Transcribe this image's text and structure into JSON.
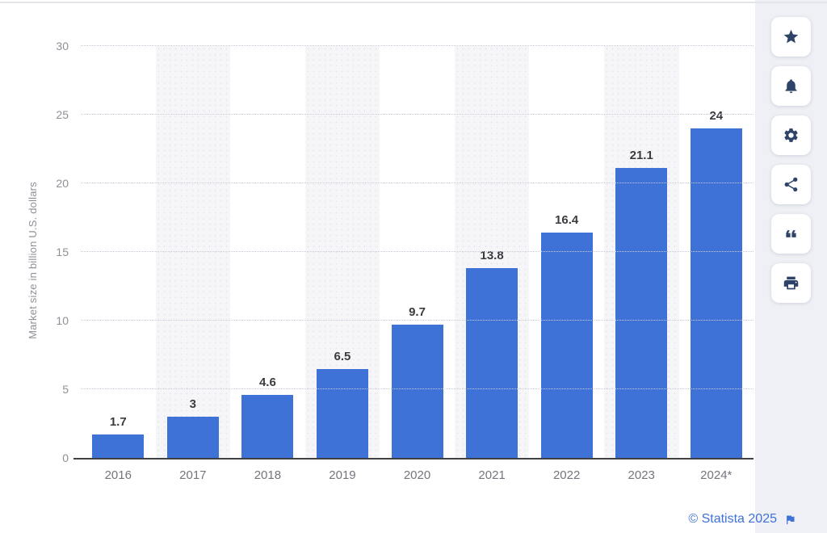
{
  "page": {
    "background": "#ffffff",
    "accent_blue": "#3e72d6",
    "panel_background": "#eef0f5",
    "icon_color": "#2d4468"
  },
  "chart_data": {
    "type": "bar",
    "title": "",
    "categories": [
      "2016",
      "2017",
      "2018",
      "2019",
      "2020",
      "2021",
      "2022",
      "2023",
      "2024*"
    ],
    "values": [
      1.7,
      3,
      4.6,
      6.5,
      9.7,
      13.8,
      16.4,
      21.1,
      24
    ],
    "value_labels": [
      "1.7",
      "3",
      "4.6",
      "6.5",
      "9.7",
      "13.8",
      "16.4",
      "21.1",
      "24"
    ],
    "xlabel": "",
    "ylabel": "Market size in billion U.S. dollars",
    "ylim": [
      0,
      30
    ],
    "yticks": [
      0,
      5,
      10,
      15,
      20,
      25,
      30
    ],
    "grid": "horizontal-dotted",
    "legend": "none",
    "bar_color": "#3e72d6",
    "alternating_band_color": "#f6f6f9"
  },
  "toolbar": {
    "buttons": [
      {
        "name": "favorite",
        "icon": "star-icon"
      },
      {
        "name": "alerts",
        "icon": "bell-icon"
      },
      {
        "name": "settings",
        "icon": "gear-icon"
      },
      {
        "name": "share",
        "icon": "share-icon"
      },
      {
        "name": "cite",
        "icon": "quote-icon"
      },
      {
        "name": "print",
        "icon": "print-icon"
      }
    ]
  },
  "footer": {
    "credit": "© Statista 2025",
    "flag_icon": "flag-icon"
  }
}
